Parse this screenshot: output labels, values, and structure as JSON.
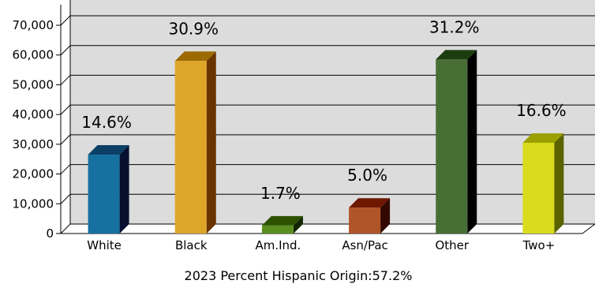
{
  "chart_data": {
    "type": "bar",
    "categories": [
      "White",
      "Black",
      "Am.Ind.",
      "Asn/Pac",
      "Other",
      "Two+"
    ],
    "values": [
      26500,
      58000,
      2700,
      8700,
      58500,
      30500
    ],
    "data_labels": [
      "14.6%",
      "30.9%",
      "1.7%",
      "5.0%",
      "31.2%",
      "16.6%"
    ],
    "ylim": [
      0,
      70000
    ],
    "yticks": [
      0,
      10000,
      20000,
      30000,
      40000,
      50000,
      60000,
      70000
    ],
    "ytick_labels": [
      "0",
      "10,000",
      "20,000",
      "30,000",
      "40,000",
      "50,000",
      "60,000",
      "70,000"
    ],
    "xlabel": "2023 Percent Hispanic Origin:57.2%",
    "ylabel": "",
    "title": "",
    "grid": true,
    "legend": "none",
    "bar_colors": [
      {
        "front": "#1670a0",
        "top": "#0b3f66",
        "side": "#06102e"
      },
      {
        "front": "#dea628",
        "top": "#9c6a00",
        "side": "#6a3300"
      },
      {
        "front": "#5a8e20",
        "top": "#2c5200",
        "side": "#122600"
      },
      {
        "front": "#b05528",
        "top": "#6e1800",
        "side": "#340800"
      },
      {
        "front": "#486e36",
        "top": "#1c3e0e",
        "side": "#000000"
      },
      {
        "front": "#d8dc1c",
        "top": "#9ca000",
        "side": "#5c6200"
      }
    ],
    "wall_color": "#dcdcdc",
    "grid_color": "#000000"
  }
}
